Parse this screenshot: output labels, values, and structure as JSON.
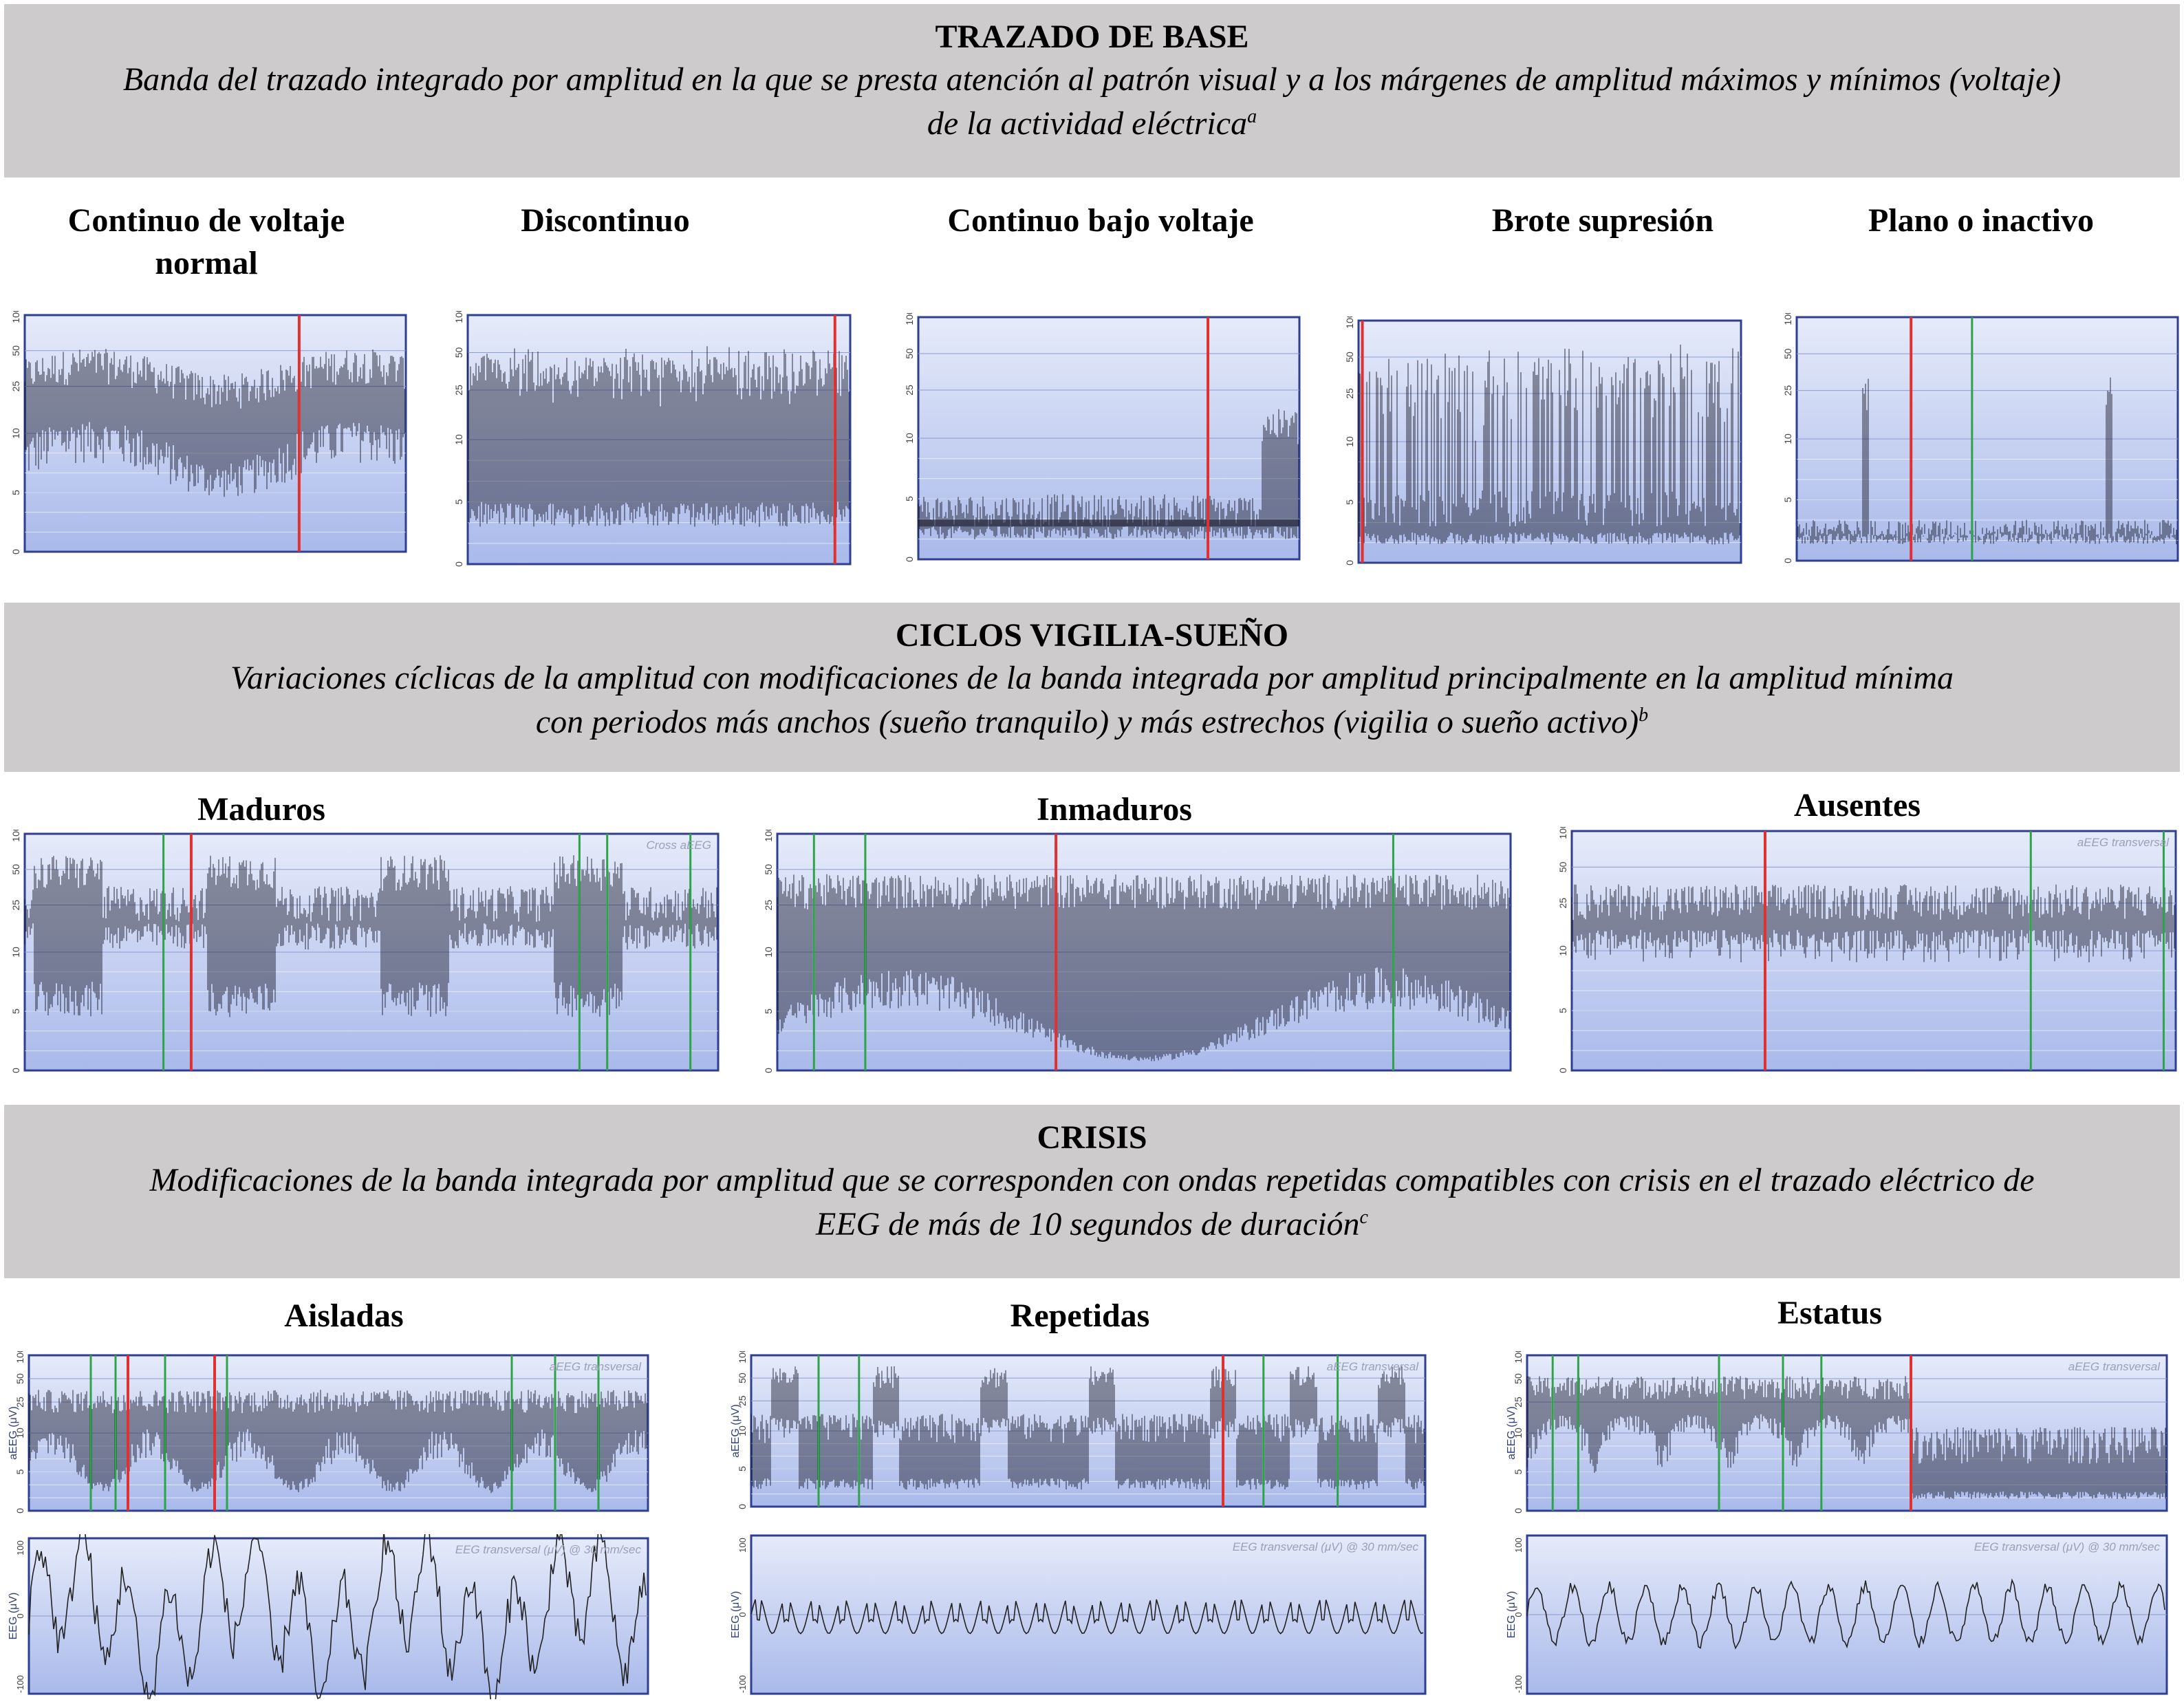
{
  "sections": [
    {
      "title": "TRAZADO DE BASE",
      "desc_line1": "Banda del trazado integrado por amplitud en la que se presta atención al patrón visual y a los márgenes de amplitud máximos y mínimos (voltaje)",
      "desc_line2": "de la actividad eléctrica",
      "footnote": "a",
      "panels": [
        "Continuo de voltaje normal",
        "Discontinuo",
        "Continuo bajo voltaje",
        "Brote supresión",
        "Plano o inactivo"
      ]
    },
    {
      "title": "CICLOS VIGILIA-SUEÑO",
      "desc_line1": "Variaciones cíclicas de la amplitud  con modificaciones de la banda integrada por amplitud principalmente en la amplitud mínima",
      "desc_line2": "con periodos más anchos (sueño tranquilo) y más estrechos (vigilia o sueño activo)",
      "footnote": "b",
      "panels": [
        "Maduros",
        "Inmaduros",
        "Ausentes"
      ]
    },
    {
      "title": "CRISIS",
      "desc_line1": "Modificaciones de la banda integrada por amplitud que se corresponden con ondas repetidas compatibles con crisis en el trazado eléctrico de",
      "desc_line2": "EEG de más de 10 segundos de duración",
      "footnote": "c",
      "panels": [
        "Aisladas",
        "Repetidas",
        "Estatus"
      ]
    }
  ],
  "trace_labels": {
    "cross_eeg": "Cross aEEG",
    "aeeg_transversal": "aEEG transversal",
    "eeg_transversal": "EEG transversal (μV) @ 30 mm/sec",
    "aeeg_axis": "aEEG (μV)",
    "eeg_axis": "EEG (μV)",
    "eeg_axis_alt": "EEG (μV)"
  },
  "ticks": {
    "aeeg": [
      "100",
      "50",
      "25",
      "10",
      "5",
      "0"
    ],
    "eeg": [
      "100",
      "0",
      "-100"
    ]
  },
  "colors": {
    "band": "#cdcbcb",
    "trace_bg_top": "#e6ebfa",
    "trace_bg_bottom": "#a9b9ea",
    "trace": "#1a1a2a",
    "cursor_red": "#e03030",
    "cursor_green": "#2fa34a",
    "frame": "#2e3f8f"
  }
}
